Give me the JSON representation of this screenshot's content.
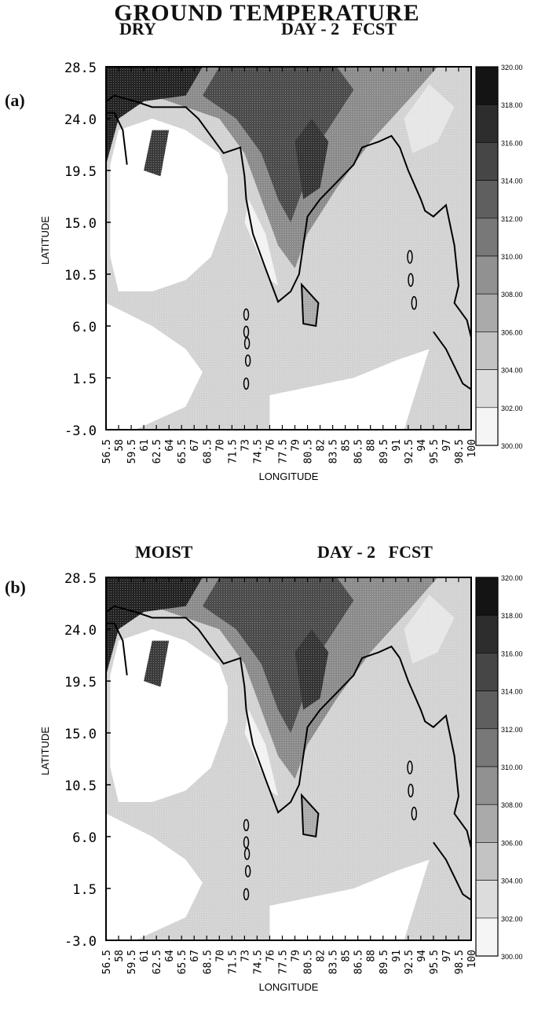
{
  "title": "GROUND TEMPERATURE",
  "chart_data": [
    {
      "type": "heatmap",
      "panel_label": "(a)",
      "subtitle_left": "DRY",
      "subtitle_right": "DAY - 2   FCST",
      "xlabel": "LONGITUDE",
      "ylabel": "LATITUDE",
      "xlim": [
        56.5,
        100.0
      ],
      "ylim": [
        -3.0,
        28.5
      ],
      "yticks": [
        "28.5",
        "24.0",
        "19.5",
        "15.0",
        "10.5",
        "6.0",
        "1.5",
        "-3.0"
      ],
      "xticks": [
        "56.5",
        "58",
        "59.5",
        "61",
        "62.5",
        "64",
        "65.5",
        "67",
        "68.5",
        "70",
        "71.5",
        "73",
        "74.5",
        "76",
        "77.5",
        "79",
        "80.5",
        "82",
        "83.5",
        "85",
        "86.5",
        "88",
        "89.5",
        "91",
        "92.5",
        "94",
        "95.5",
        "97",
        "98.5",
        "100"
      ],
      "colorbar_levels": [
        "320.00",
        "318.00",
        "316.00",
        "314.00",
        "312.00",
        "310.00",
        "308.00",
        "306.00",
        "304.00",
        "302.00",
        "300.00"
      ]
    },
    {
      "type": "heatmap",
      "panel_label": "(b)",
      "subtitle_left": "MOIST",
      "subtitle_right": "DAY - 2   FCST",
      "xlabel": "LONGITUDE",
      "ylabel": "LATITUDE",
      "xlim": [
        56.5,
        100.0
      ],
      "ylim": [
        -3.0,
        28.5
      ],
      "yticks": [
        "28.5",
        "24.0",
        "19.5",
        "15.0",
        "10.5",
        "6.0",
        "1.5",
        "-3.0"
      ],
      "xticks": [
        "56.5",
        "58",
        "59.5",
        "61",
        "62.5",
        "64",
        "65.5",
        "67",
        "68.5",
        "70",
        "71.5",
        "73",
        "74.5",
        "76",
        "77.5",
        "79",
        "80.5",
        "82",
        "83.5",
        "85",
        "86.5",
        "88",
        "89.5",
        "91",
        "92.5",
        "94",
        "95.5",
        "97",
        "98.5",
        "100"
      ],
      "colorbar_levels": [
        "320.00",
        "318.00",
        "316.00",
        "314.00",
        "312.00",
        "310.00",
        "308.00",
        "306.00",
        "304.00",
        "302.00",
        "300.00"
      ]
    }
  ]
}
